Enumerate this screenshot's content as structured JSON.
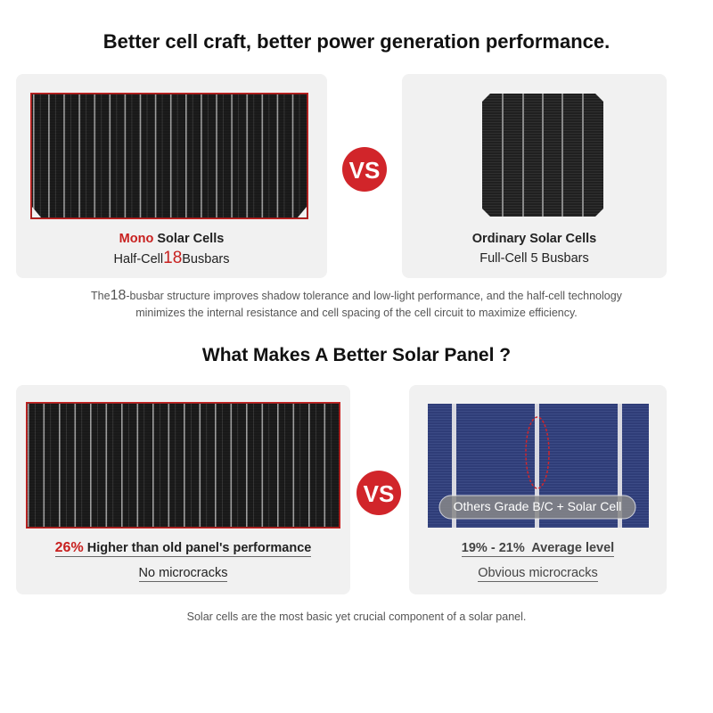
{
  "section1": {
    "title": "Better cell craft, better power generation performance.",
    "left": {
      "name_highlight": "Mono",
      "name_rest": " Solar Cells",
      "sub_pre": "Half-Cell",
      "sub_number": "18",
      "sub_post": "Busbars"
    },
    "vs": "VS",
    "right": {
      "name": "Ordinary Solar Cells",
      "sub": "Full-Cell 5 Busbars"
    },
    "description": {
      "pre": "The",
      "number": "18",
      "line1_rest": "-busbar structure improves shadow tolerance and low-light performance, and the half-cell technology",
      "line2": "minimizes the internal resistance and cell spacing of the cell circuit to maximize efficiency."
    }
  },
  "section2": {
    "title": "What Makes A Better Solar Panel ?",
    "left": {
      "highlight": "26%",
      "rest": " Higher than old panel's performance",
      "sub": "No microcracks"
    },
    "vs": "VS",
    "right": {
      "overlay": "Others Grade B/C + Solar Cell",
      "line": "19% - 21%  Average level",
      "sub": "Obvious microcracks"
    },
    "footer": "Solar cells are the most basic yet crucial component of a solar panel."
  }
}
